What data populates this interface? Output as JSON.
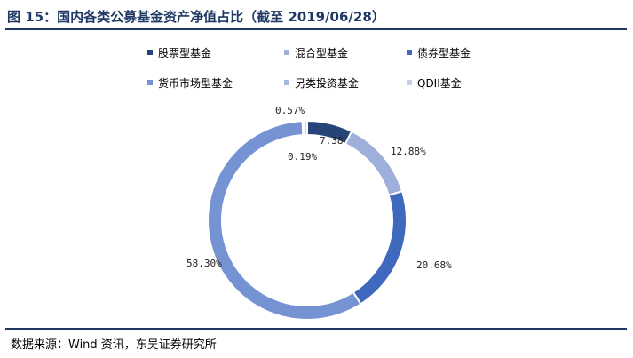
{
  "header": {
    "title": "图 15：国内各类公募基金资产净值占比（截至 2019/06/28）"
  },
  "footer": {
    "source": "数据来源：Wind 资讯，东吴证券研究所"
  },
  "chart_data": {
    "type": "pie",
    "donut": true,
    "title": "",
    "legend_position": "top",
    "series": [
      {
        "name": "股票型基金",
        "label": "7.38",
        "value": 7.38,
        "color": "#264478"
      },
      {
        "name": "混合型基金",
        "label": "12.88%",
        "value": 12.88,
        "color": "#9dafda"
      },
      {
        "name": "债券型基金",
        "label": "20.68%",
        "value": 20.68,
        "color": "#3e69bd"
      },
      {
        "name": "货币市场型基金",
        "label": "58.30%",
        "value": 58.3,
        "color": "#7592d2"
      },
      {
        "name": "另类投资基金",
        "label": "0.19%",
        "value": 0.19,
        "color": "#a6b6de"
      },
      {
        "name": "QDII基金",
        "label": "0.57%",
        "value": 0.57,
        "color": "#c5d0eb"
      }
    ]
  }
}
